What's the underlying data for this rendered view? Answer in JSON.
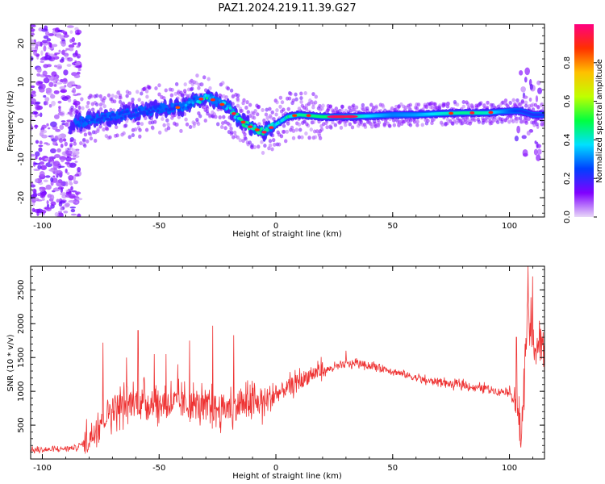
{
  "figure_title": "PAZ1.2024.219.11.39.G27",
  "chart_data": [
    {
      "type": "heatmap",
      "xlabel": "Height of straight line (km)",
      "ylabel": "Frequency (Hz)",
      "xlim": [
        -105,
        115
      ],
      "ylim": [
        -25,
        25
      ],
      "xticks": [
        -100,
        -50,
        0,
        50,
        100
      ],
      "yticks": [
        -20,
        -10,
        0,
        10,
        20
      ],
      "colorbar": {
        "label": "Normalized spectral amplitude",
        "range": [
          0,
          1
        ],
        "ticks": [
          "0.0",
          "0.2",
          "0.4",
          "0.6",
          "0.8"
        ],
        "colors": [
          "#e8d8f8",
          "#8000ff",
          "#0040ff",
          "#00e0ff",
          "#00ff40",
          "#c0ff00",
          "#ffc000",
          "#ff3000",
          "#ff0080"
        ]
      },
      "signal_track": {
        "x": [
          -88,
          -80,
          -70,
          -60,
          -50,
          -40,
          -35,
          -30,
          -25,
          -20,
          -15,
          -10,
          -5,
          0,
          5,
          10,
          20,
          30,
          40,
          50,
          60,
          70,
          80,
          90,
          100,
          105,
          110,
          115
        ],
        "freq": [
          -1,
          0,
          1,
          2,
          3,
          3.5,
          5,
          6,
          5,
          3,
          0,
          -2,
          -3,
          -1,
          1,
          1.5,
          1,
          1,
          1.2,
          1.5,
          1.5,
          1.8,
          2,
          2,
          2.5,
          2.5,
          1.5,
          1.5
        ],
        "amplitude": [
          0.35,
          0.4,
          0.4,
          0.35,
          0.35,
          0.5,
          0.6,
          0.8,
          0.6,
          0.7,
          0.8,
          0.85,
          0.9,
          0.7,
          0.8,
          0.9,
          0.95,
          0.95,
          0.75,
          0.6,
          0.65,
          0.8,
          0.9,
          0.85,
          0.55,
          0.45,
          0.4,
          0.4
        ]
      }
    },
    {
      "type": "line",
      "xlabel": "Height of straight line (km)",
      "ylabel": "SNR (10 * v/v)",
      "xlim": [
        -105,
        115
      ],
      "ylim": [
        0,
        2850
      ],
      "xticks": [
        -100,
        -50,
        0,
        50,
        100
      ],
      "yticks": [
        500,
        1000,
        1500,
        2000,
        2500
      ],
      "color": "#ee3333",
      "series": [
        {
          "x": [
            -105,
            -95,
            -85,
            -80,
            -75,
            -70,
            -65,
            -60,
            -55,
            -50,
            -45,
            -40,
            -35,
            -30,
            -25,
            -20,
            -15,
            -10,
            -5,
            0,
            5,
            10,
            15,
            20,
            25,
            30,
            35,
            40,
            45,
            50,
            55,
            60,
            65,
            70,
            75,
            80,
            85,
            90,
            95,
            100,
            103,
            105,
            107,
            108,
            110,
            115
          ],
          "values": [
            130,
            140,
            170,
            300,
            600,
            750,
            800,
            850,
            850,
            800,
            850,
            800,
            800,
            750,
            750,
            750,
            800,
            800,
            850,
            950,
            1050,
            1150,
            1250,
            1300,
            1350,
            1400,
            1420,
            1380,
            1350,
            1300,
            1250,
            1200,
            1150,
            1150,
            1100,
            1100,
            1050,
            1050,
            1000,
            1000,
            800,
            300,
            1700,
            2200,
            1700,
            1650
          ]
        }
      ],
      "spikes": [
        {
          "x": -74,
          "y": 1720
        },
        {
          "x": -64,
          "y": 1500
        },
        {
          "x": -59,
          "y": 1900
        },
        {
          "x": -52,
          "y": 1550
        },
        {
          "x": -47,
          "y": 1550
        },
        {
          "x": -42,
          "y": 1400
        },
        {
          "x": -37,
          "y": 1750
        },
        {
          "x": -27,
          "y": 1970
        },
        {
          "x": -18,
          "y": 1830
        },
        {
          "x": -11,
          "y": 1100
        },
        {
          "x": 18,
          "y": 1450
        },
        {
          "x": 30,
          "y": 1600
        },
        {
          "x": 103,
          "y": 1800
        },
        {
          "x": 108,
          "y": 2850
        },
        {
          "x": 110,
          "y": 2700
        }
      ]
    }
  ]
}
